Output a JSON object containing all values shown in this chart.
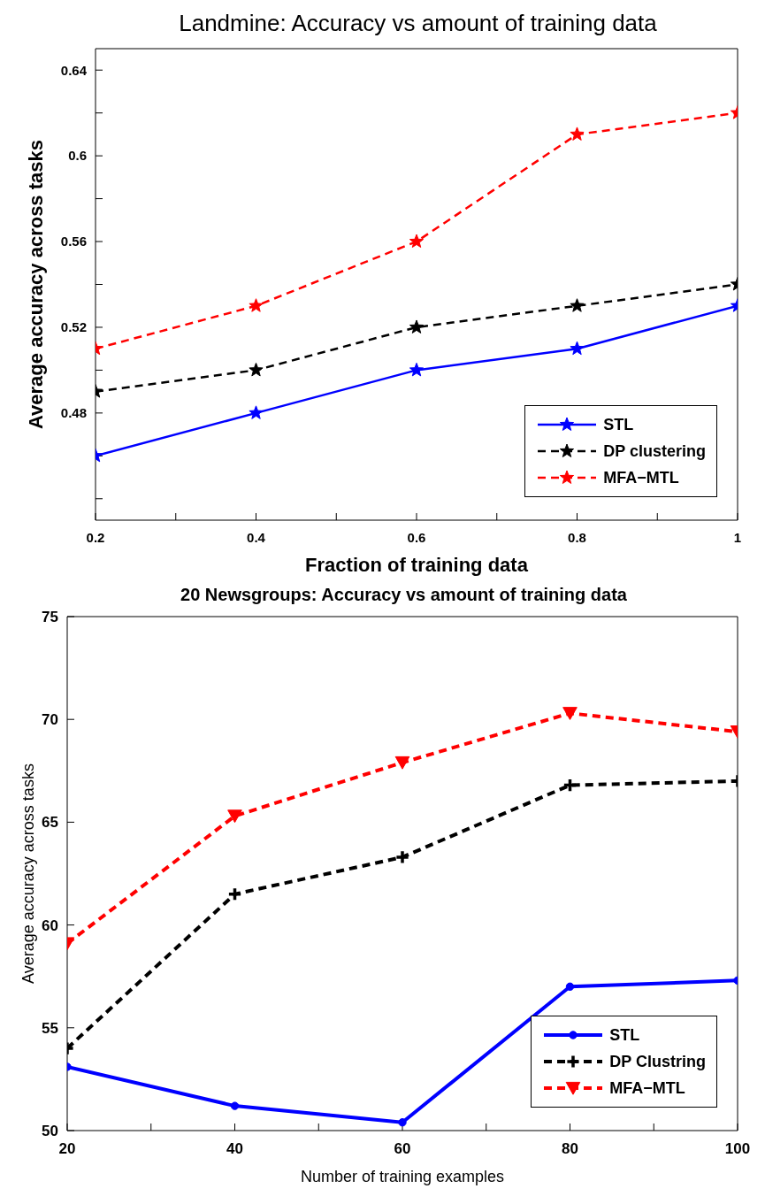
{
  "chart_data": [
    {
      "type": "line",
      "title": "Landmine: Accuracy vs amount of training data",
      "xlabel": "Fraction of training data",
      "ylabel": "Average accuracy across tasks",
      "x": [
        0.2,
        0.4,
        0.6,
        0.8,
        1
      ],
      "xlim": [
        0.2,
        1
      ],
      "xticks": [
        0.2,
        {
          "value": 0.3,
          "label": null
        },
        0.4,
        {
          "value": 0.5,
          "label": null
        },
        0.6,
        {
          "value": 0.7,
          "label": null
        },
        0.8,
        {
          "value": 0.9,
          "label": null
        },
        1
      ],
      "ylim": [
        0.43,
        0.65
      ],
      "yticks": [
        {
          "value": 0.44,
          "label": null
        },
        {
          "value": 0.46,
          "label": null
        },
        0.48,
        {
          "value": 0.5,
          "label": null
        },
        0.52,
        {
          "value": 0.54,
          "label": null
        },
        0.56,
        {
          "value": 0.58,
          "label": null
        },
        0.6,
        {
          "value": 0.62,
          "label": null
        },
        0.64
      ],
      "legend": "bottom right",
      "marker": "star",
      "series": [
        {
          "name": "STL",
          "color": "#0000ff",
          "line_style": "solid",
          "values": [
            0.46,
            0.48,
            0.5,
            0.51,
            0.53
          ]
        },
        {
          "name": "DP clustering",
          "color": "#000000",
          "line_style": "dashed",
          "values": [
            0.49,
            0.5,
            0.52,
            0.53,
            0.54
          ]
        },
        {
          "name": "MFA−MTL",
          "color": "#ff0000",
          "line_style": "dashed",
          "values": [
            0.51,
            0.53,
            0.56,
            0.61,
            0.62
          ]
        }
      ]
    },
    {
      "type": "line",
      "title": "20 Newsgroups: Accuracy vs amount of training data",
      "xlabel": "Number of training examples",
      "ylabel": "Average accuracy across tasks",
      "x": [
        20,
        40,
        60,
        80,
        100
      ],
      "xlim": [
        20,
        100
      ],
      "xticks": [
        20,
        {
          "value": 30,
          "label": null
        },
        40,
        {
          "value": 50,
          "label": null
        },
        60,
        {
          "value": 70,
          "label": null
        },
        80,
        {
          "value": 90,
          "label": null
        },
        100
      ],
      "ylim": [
        50,
        75
      ],
      "yticks": [
        50,
        55,
        60,
        65,
        70,
        75
      ],
      "legend": "bottom right",
      "series": [
        {
          "name": "STL",
          "color": "#0000ff",
          "line_style": "solid",
          "marker": "circle",
          "values": [
            53.1,
            51.2,
            50.4,
            57.0,
            57.3
          ]
        },
        {
          "name": "DP Clustring",
          "color": "#000000",
          "line_style": "dashed",
          "marker": "cross",
          "values": [
            54.0,
            61.5,
            63.3,
            66.8,
            67.0
          ]
        },
        {
          "name": "MFA−MTL",
          "color": "#ff0000",
          "line_style": "dashed",
          "marker": "triangle",
          "values": [
            59.1,
            65.3,
            67.9,
            70.3,
            69.4
          ]
        }
      ]
    }
  ]
}
